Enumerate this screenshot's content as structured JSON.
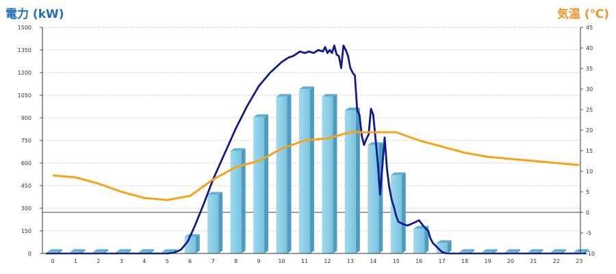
{
  "chart_data": {
    "type": "bar+line",
    "left_axis": {
      "label": "電力 (kW)",
      "color": "#1f6fb5",
      "range": [
        0,
        1500
      ],
      "ticks": [
        "0",
        "150",
        "300",
        "450",
        "600",
        "750",
        "900",
        "1050",
        "1200",
        "1350",
        "1500"
      ]
    },
    "right_axis": {
      "label": "気温 (℃)",
      "color": "#f0952a",
      "range": [
        -10,
        45
      ],
      "ticks": [
        "-10",
        "-5",
        "0",
        "5",
        "10",
        "15",
        "20",
        "25",
        "30",
        "35",
        "40",
        "45"
      ]
    },
    "categories": [
      "0",
      "1",
      "2",
      "3",
      "4",
      "5",
      "6",
      "7",
      "8",
      "9",
      "10",
      "11",
      "12",
      "13",
      "14",
      "15",
      "16",
      "17",
      "18",
      "19",
      "20",
      "21",
      "22",
      "23"
    ],
    "grid": true,
    "series": [
      {
        "kind": "bar",
        "axis": "left",
        "color": "#8ecfe8",
        "values": [
          10,
          10,
          10,
          10,
          10,
          10,
          110,
          390,
          680,
          905,
          1040,
          1090,
          1040,
          950,
          720,
          520,
          165,
          70,
          10,
          10,
          10,
          10,
          10,
          10
        ]
      },
      {
        "kind": "line",
        "axis": "left",
        "color": "#101a8c",
        "x": [
          5.0,
          5.3,
          5.6,
          5.9,
          6.2,
          6.6,
          7.0,
          7.5,
          8.0,
          8.5,
          9.0,
          9.5,
          10.0,
          10.3,
          10.5,
          10.7,
          10.8,
          11.0,
          11.2,
          11.4,
          11.6,
          11.8,
          11.9,
          12.0,
          12.1,
          12.2,
          12.3,
          12.4,
          12.5,
          12.6,
          12.7,
          12.8,
          12.9,
          13.0,
          13.1,
          13.2,
          13.3,
          13.4,
          13.5,
          13.6,
          13.7,
          13.8,
          13.9,
          14.0,
          14.1,
          14.2,
          14.3,
          14.4,
          14.5,
          14.6,
          14.7,
          14.8,
          14.9,
          15.0,
          15.1,
          15.3,
          15.5,
          15.8,
          16.0,
          16.2,
          16.4,
          16.5,
          16.6,
          16.8,
          17.0,
          17.2
        ],
        "values": [
          0,
          5,
          25,
          80,
          180,
          330,
          490,
          660,
          830,
          980,
          1110,
          1200,
          1270,
          1300,
          1310,
          1330,
          1340,
          1330,
          1340,
          1330,
          1350,
          1340,
          1370,
          1330,
          1350,
          1330,
          1380,
          1320,
          1310,
          1230,
          1380,
          1350,
          1310,
          1230,
          1200,
          1180,
          950,
          920,
          780,
          720,
          760,
          790,
          960,
          920,
          760,
          600,
          390,
          580,
          770,
          560,
          440,
          360,
          310,
          250,
          210,
          195,
          185,
          205,
          220,
          180,
          150,
          100,
          70,
          40,
          10,
          0
        ]
      },
      {
        "kind": "line",
        "axis": "right",
        "color": "#f5a31a",
        "values": [
          9.0,
          8.5,
          7.0,
          5.0,
          3.5,
          3.0,
          4.0,
          8.0,
          11.0,
          12.5,
          15.5,
          17.5,
          18.0,
          19.5,
          19.5,
          19.5,
          17.5,
          16.0,
          14.5,
          13.5,
          13.0,
          12.5,
          12.0,
          11.5
        ]
      }
    ]
  }
}
